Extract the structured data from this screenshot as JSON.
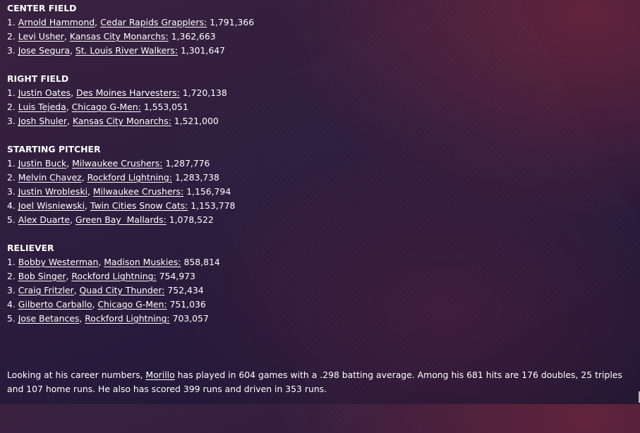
{
  "sections": [
    {
      "title": "CENTER FIELD",
      "entries": [
        {
          "rank": "1.",
          "player": "Arnold Hammond",
          "team": "Cedar Rapids Grapplers:",
          "value": "1,791,366"
        },
        {
          "rank": "2.",
          "player": "Levi Usher",
          "team": "Kansas City Monarchs:",
          "value": "1,362,663"
        },
        {
          "rank": "3.",
          "player": "Jose Segura",
          "team": "St. Louis River Walkers:",
          "value": "1,301,647"
        }
      ]
    },
    {
      "title": "RIGHT FIELD",
      "entries": [
        {
          "rank": "1.",
          "player": "Justin Oates",
          "team": "Des Moines Harvesters:",
          "value": "1,720,138"
        },
        {
          "rank": "2.",
          "player": "Luis Tejeda",
          "team": "Chicago G-Men:",
          "value": "1,553,051"
        },
        {
          "rank": "3.",
          "player": "Josh Shuler",
          "team": "Kansas City Monarchs:",
          "value": "1,521,000"
        }
      ]
    },
    {
      "title": "STARTING PITCHER",
      "entries": [
        {
          "rank": "1.",
          "player": "Justin Buck",
          "team": "Milwaukee Crushers:",
          "value": "1,287,776"
        },
        {
          "rank": "2.",
          "player": "Melvin Chavez",
          "team": "Rockford Lightning:",
          "value": "1,283,738"
        },
        {
          "rank": "3.",
          "player": "Justin Wrobleski",
          "team": "Milwaukee Crushers:",
          "value": "1,156,794"
        },
        {
          "rank": "4.",
          "player": "Joel Wisniewski",
          "team": "Twin Cities Snow Cats:",
          "value": "1,153,778"
        },
        {
          "rank": "5.",
          "player": "Alex Duarte",
          "team": "Green Bay  Mallards:",
          "value": "1,078,522"
        }
      ]
    },
    {
      "title": "RELIEVER",
      "entries": [
        {
          "rank": "1.",
          "player": "Bobby Westerman",
          "team": "Madison Muskies:",
          "value": "858,814"
        },
        {
          "rank": "2.",
          "player": "Bob Singer",
          "team": "Rockford Lightning:",
          "value": "754,973"
        },
        {
          "rank": "3.",
          "player": "Craig Fritzler",
          "team": "Quad City Thunder:",
          "value": "752,434"
        },
        {
          "rank": "4.",
          "player": "Gilberto Carballo",
          "team": "Chicago G-Men:",
          "value": "751,036"
        },
        {
          "rank": "5.",
          "player": "Jose Betances",
          "team": "Rockford Lightning:",
          "value": "703,057"
        }
      ]
    }
  ],
  "summary": {
    "before_link": "Looking at his career numbers, ",
    "player_link": "Morillo",
    "after_link": " has played in 604 games with a .298 batting average. Among his 681 hits are 176 doubles, 25 triples and 107 home runs. He also has scored 399 runs and driven in 353 runs."
  },
  "colors": {
    "text": "#ffffff",
    "background_top": "#3a2140",
    "background_bottom": "#1f1733",
    "accent_glow": "#8c283a"
  }
}
